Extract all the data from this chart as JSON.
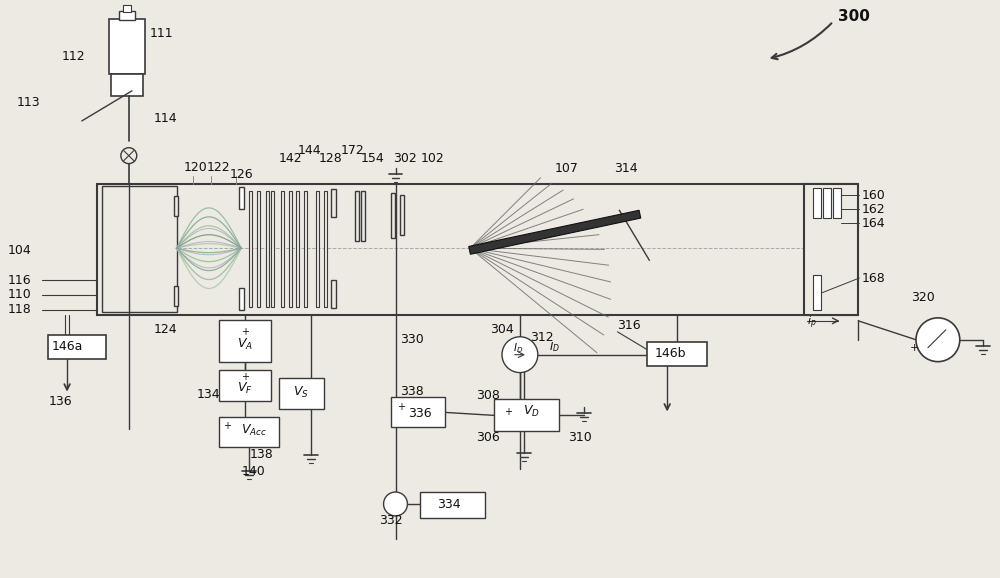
{
  "bg_color": "#ede9e3",
  "line_color": "#3a3a3a",
  "text_color": "#111111",
  "fig_w": 10.0,
  "fig_h": 5.78,
  "dpi": 100
}
